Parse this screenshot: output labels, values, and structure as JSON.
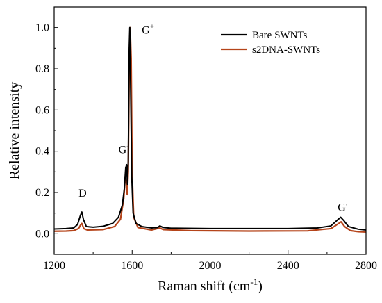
{
  "chart_data": {
    "type": "line",
    "xlabel": "Raman shift (cm",
    "xlabel_sup": "-1",
    "xlabel_close": ")",
    "ylabel": "Relative intensity",
    "xlim": [
      1200,
      2800
    ],
    "ylim": [
      -0.1,
      1.1
    ],
    "x_ticks": [
      1200,
      1600,
      2000,
      2400,
      2800
    ],
    "y_ticks": [
      0.0,
      0.2,
      0.4,
      0.6,
      0.8,
      1.0
    ],
    "y_tick_labels": [
      "0.0",
      "0.2",
      "0.4",
      "0.6",
      "0.8",
      "1.0"
    ],
    "legend_position": "top-right",
    "series": [
      {
        "name": "Bare SWNTs",
        "color": "#000000",
        "points": [
          [
            1200,
            0.023
          ],
          [
            1260,
            0.025
          ],
          [
            1300,
            0.028
          ],
          [
            1320,
            0.045
          ],
          [
            1335,
            0.09
          ],
          [
            1342,
            0.105
          ],
          [
            1350,
            0.07
          ],
          [
            1365,
            0.035
          ],
          [
            1400,
            0.032
          ],
          [
            1450,
            0.036
          ],
          [
            1500,
            0.05
          ],
          [
            1530,
            0.08
          ],
          [
            1550,
            0.14
          ],
          [
            1560,
            0.22
          ],
          [
            1567,
            0.32
          ],
          [
            1572,
            0.335
          ],
          [
            1576,
            0.24
          ],
          [
            1580,
            0.35
          ],
          [
            1585,
            0.9
          ],
          [
            1588,
            1.0
          ],
          [
            1592,
            0.75
          ],
          [
            1598,
            0.28
          ],
          [
            1605,
            0.1
          ],
          [
            1620,
            0.05
          ],
          [
            1650,
            0.035
          ],
          [
            1700,
            0.028
          ],
          [
            1730,
            0.03
          ],
          [
            1742,
            0.038
          ],
          [
            1760,
            0.03
          ],
          [
            1800,
            0.027
          ],
          [
            2000,
            0.025
          ],
          [
            2200,
            0.025
          ],
          [
            2400,
            0.025
          ],
          [
            2550,
            0.028
          ],
          [
            2620,
            0.038
          ],
          [
            2655,
            0.068
          ],
          [
            2670,
            0.08
          ],
          [
            2685,
            0.065
          ],
          [
            2710,
            0.035
          ],
          [
            2760,
            0.022
          ],
          [
            2800,
            0.018
          ]
        ]
      },
      {
        "name": "s2DNA-SWNTs",
        "color": "#b5441a",
        "points": [
          [
            1200,
            0.012
          ],
          [
            1260,
            0.013
          ],
          [
            1300,
            0.015
          ],
          [
            1325,
            0.025
          ],
          [
            1337,
            0.045
          ],
          [
            1342,
            0.05
          ],
          [
            1352,
            0.025
          ],
          [
            1370,
            0.018
          ],
          [
            1450,
            0.02
          ],
          [
            1510,
            0.035
          ],
          [
            1540,
            0.07
          ],
          [
            1557,
            0.17
          ],
          [
            1565,
            0.28
          ],
          [
            1570,
            0.25
          ],
          [
            1575,
            0.19
          ],
          [
            1580,
            0.3
          ],
          [
            1585,
            0.8
          ],
          [
            1590,
            1.0
          ],
          [
            1595,
            0.85
          ],
          [
            1600,
            0.3
          ],
          [
            1608,
            0.08
          ],
          [
            1630,
            0.03
          ],
          [
            1700,
            0.018
          ],
          [
            1742,
            0.028
          ],
          [
            1760,
            0.02
          ],
          [
            1900,
            0.015
          ],
          [
            2200,
            0.013
          ],
          [
            2500,
            0.014
          ],
          [
            2620,
            0.025
          ],
          [
            2660,
            0.05
          ],
          [
            2672,
            0.058
          ],
          [
            2690,
            0.035
          ],
          [
            2720,
            0.015
          ],
          [
            2760,
            0.01
          ],
          [
            2800,
            0.008
          ]
        ]
      }
    ],
    "annotations": [
      {
        "label": "G",
        "sup": "+",
        "x": 1650,
        "y": 0.97
      },
      {
        "label": "G",
        "sup": "-",
        "x": 1530,
        "y": 0.39
      },
      {
        "label": "D",
        "x": 1325,
        "y": 0.18
      },
      {
        "label": "G'",
        "x": 2655,
        "y": 0.11
      }
    ]
  }
}
